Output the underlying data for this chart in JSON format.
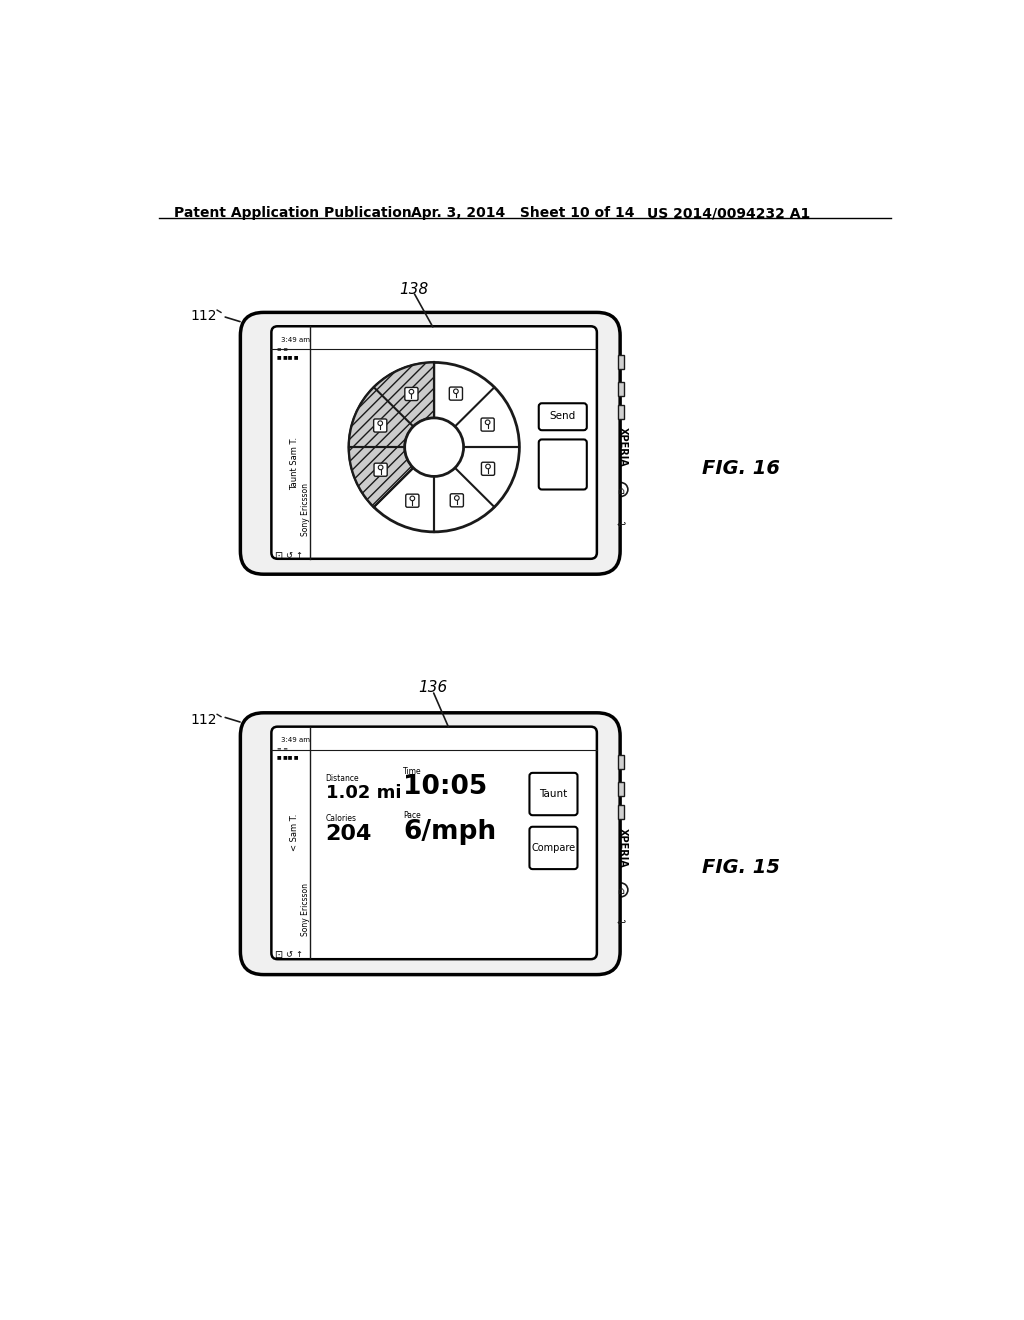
{
  "bg_color": "#ffffff",
  "header_left": "Patent Application Publication",
  "header_mid": "Apr. 3, 2014   Sheet 10 of 14",
  "header_right": "US 2014/0094232 A1",
  "fig16_label": "FIG. 16",
  "fig15_label": "FIG. 15"
}
